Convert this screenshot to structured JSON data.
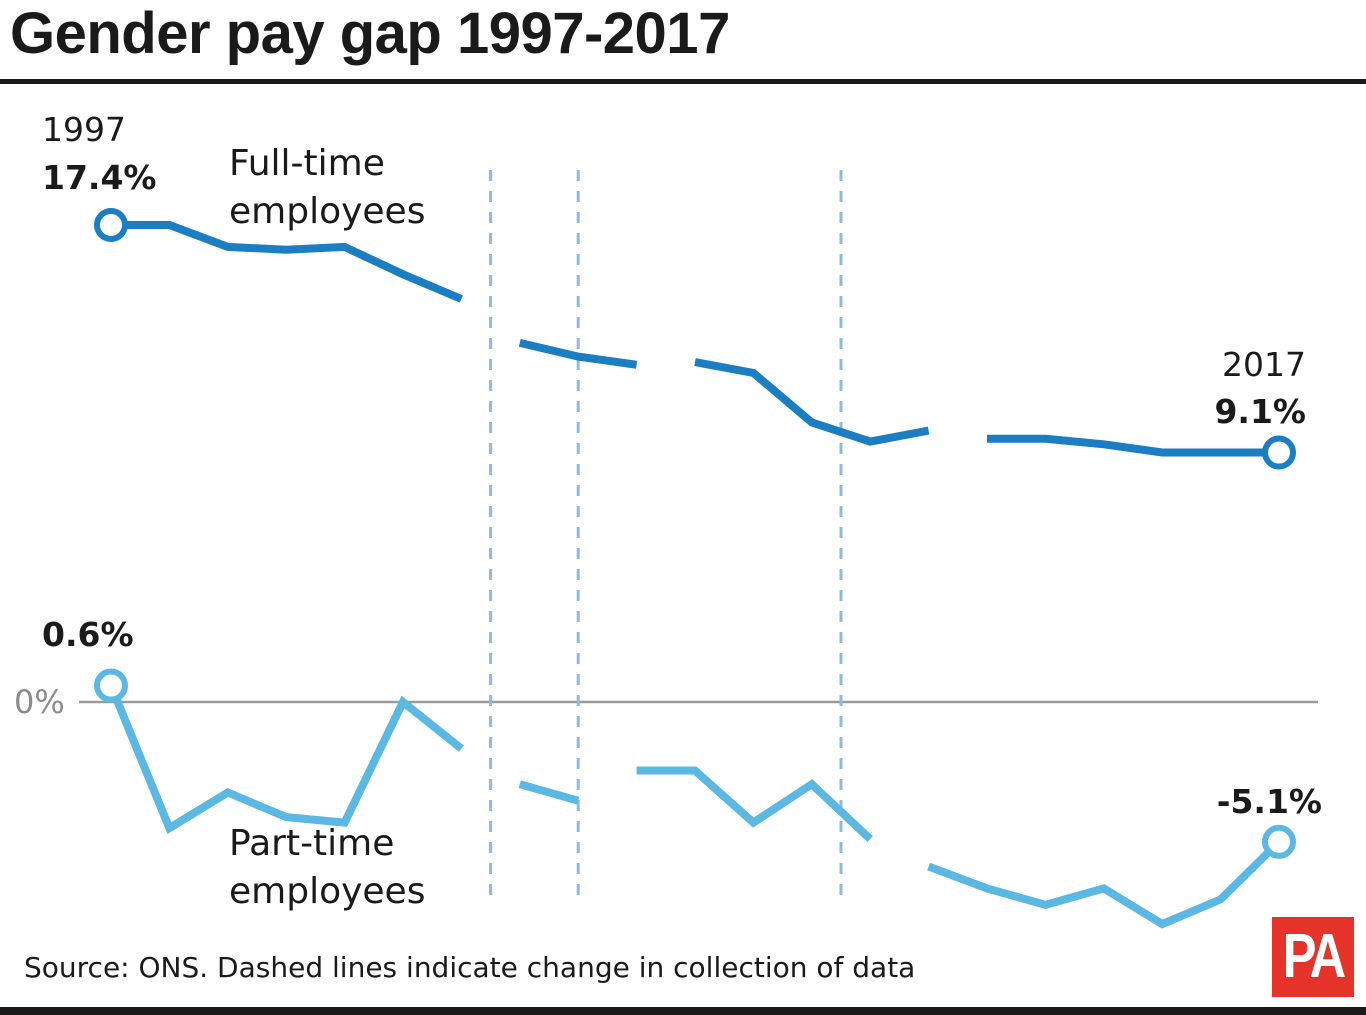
{
  "header": {
    "title": "Gender pay gap 1997-2017"
  },
  "footer": {
    "source": "Source: ONS. Dashed lines indicate change in collection of data",
    "logo_text": "PA"
  },
  "chart_data": {
    "type": "line",
    "title": "Gender pay gap 1997-2017",
    "xlabel": "",
    "ylabel": "",
    "x": [
      1997,
      1998,
      1999,
      2000,
      2001,
      2002,
      2003,
      2004,
      2005,
      2006,
      2007,
      2008,
      2009,
      2010,
      2011,
      2012,
      2013,
      2014,
      2015,
      2016,
      2017
    ],
    "xlim": [
      1997,
      2017
    ],
    "ylim": [
      -8,
      20
    ],
    "grid": false,
    "zero_line_label": "0%",
    "series_break_years": [
      2003.5,
      2005,
      2009.5
    ],
    "series": [
      {
        "name": "Full-time employees",
        "name_lines": [
          "Full-time",
          "employees"
        ],
        "color": "#1b7ec2",
        "values": [
          17.4,
          17.4,
          16.6,
          16.5,
          16.6,
          15.6,
          14.7,
          13.1,
          12.6,
          12.3,
          12.4,
          12.0,
          10.2,
          9.5,
          9.9,
          9.6,
          9.6,
          9.4,
          9.1,
          9.1,
          9.1
        ],
        "segments": [
          [
            0,
            6
          ],
          [
            7,
            9
          ],
          [
            10,
            14
          ],
          [
            15,
            20
          ]
        ],
        "start_annotation": {
          "year": "1997",
          "value": "17.4%"
        },
        "end_annotation": {
          "year": "2017",
          "value": "9.1%"
        }
      },
      {
        "name": "Part-time employees",
        "name_lines": [
          "Part-time",
          "employees"
        ],
        "color": "#5bb8e2",
        "values": [
          0.6,
          -4.6,
          -3.3,
          -4.2,
          -4.4,
          0.0,
          -1.7,
          -3.0,
          -3.6,
          -2.5,
          -2.5,
          -4.4,
          -3.0,
          -5.0,
          -6.0,
          -6.8,
          -7.4,
          -6.8,
          -8.1,
          -7.2,
          -5.1
        ],
        "segments": [
          [
            0,
            6
          ],
          [
            7,
            8
          ],
          [
            9,
            13
          ],
          [
            14,
            20
          ]
        ],
        "start_annotation": {
          "value": "0.6%"
        },
        "end_annotation": {
          "value": "-5.1%"
        }
      }
    ]
  }
}
